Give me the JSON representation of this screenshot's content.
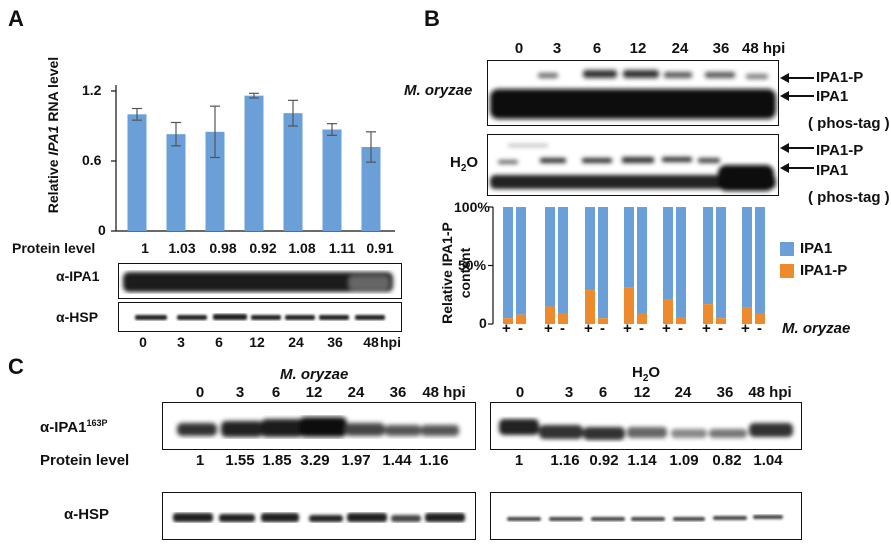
{
  "panels": {
    "a": {
      "letter": "A",
      "ylabel_pre": "Relative ",
      "ylabel_gene": "IPA1",
      "ylabel_post": " RNA level",
      "yticks": [
        "1.2",
        "0.6",
        "0"
      ],
      "protein_label": "Protein level",
      "protein_values": [
        "1",
        "1.03",
        "0.98",
        "0.92",
        "1.08",
        "1.11",
        "0.91"
      ],
      "blot1_label": "α-IPA1",
      "blot2_label": "α-HSP",
      "timepoints": [
        "0",
        "3",
        "6",
        "12",
        "24",
        "36",
        "48"
      ],
      "unit": "hpi"
    },
    "b": {
      "letter": "B",
      "timepoints": [
        "0",
        "3",
        "6",
        "12",
        "24",
        "36",
        "48 hpi"
      ],
      "treat1": "M. oryzae",
      "treat2_main": "H",
      "treat2_sub": "2",
      "treat2_end": "O",
      "band_top": "IPA1-P",
      "band_bottom": "IPA1",
      "phos_tag": "( phos-tag )",
      "ylabel": "Relative IPA1-P content",
      "ylabel_line1": "Relative IPA1-P",
      "ylabel_line2": "content",
      "yticks": [
        "100%",
        "50%",
        "0"
      ],
      "legend": [
        {
          "label": "IPA1",
          "color": "#6a9fd8"
        },
        {
          "label": "IPA1-P",
          "color": "#ee8a2e"
        }
      ],
      "xsign_plus": "+",
      "xsign_minus": "-",
      "xlabel": "M. oryzae"
    },
    "c": {
      "letter": "C",
      "title_left": "M. oryzae",
      "title_right_main": "H",
      "title_right_sub": "2",
      "title_right_end": "O",
      "timepoints": [
        "0",
        "3",
        "6",
        "12",
        "24",
        "36",
        "48 hpi"
      ],
      "blot1_label_main": "α-IPA1",
      "blot1_label_sup": "163P",
      "protein_label": "Protein level",
      "protein_left": [
        "1",
        "1.55",
        "1.85",
        "3.29",
        "1.97",
        "1.44",
        "1.16"
      ],
      "protein_right": [
        "1",
        "1.16",
        "0.92",
        "1.14",
        "1.09",
        "0.82",
        "1.04"
      ],
      "blot2_label": "α-HSP"
    }
  },
  "chart_data": [
    {
      "type": "bar",
      "title": "",
      "xlabel": "hpi",
      "ylabel": "Relative IPA1 RNA level",
      "categories": [
        "0",
        "3",
        "6",
        "12",
        "24",
        "36",
        "48"
      ],
      "values": [
        1.0,
        0.83,
        0.85,
        1.16,
        1.01,
        0.87,
        0.72
      ],
      "errors": [
        0.05,
        0.1,
        0.22,
        0.02,
        0.11,
        0.05,
        0.13
      ],
      "ylim": [
        0,
        1.2
      ],
      "color": "#6a9fd8"
    },
    {
      "type": "bar",
      "stacked": true,
      "ylabel": "Relative IPA1-P content",
      "xlabel": "M. oryzae",
      "ylim": [
        0,
        100
      ],
      "categories": [
        "0 +",
        "0 -",
        "3 +",
        "3 -",
        "6 +",
        "6 -",
        "12 +",
        "12 -",
        "24 +",
        "24 -",
        "36 +",
        "36 -",
        "48 +",
        "48 -"
      ],
      "series": [
        {
          "name": "IPA1-P",
          "values": [
            5,
            8,
            15,
            9,
            29,
            5,
            31,
            9,
            21,
            6,
            17,
            5,
            14,
            9
          ]
        },
        {
          "name": "IPA1",
          "values": [
            95,
            92,
            85,
            91,
            71,
            95,
            69,
            91,
            79,
            94,
            83,
            95,
            86,
            91
          ]
        }
      ]
    }
  ]
}
